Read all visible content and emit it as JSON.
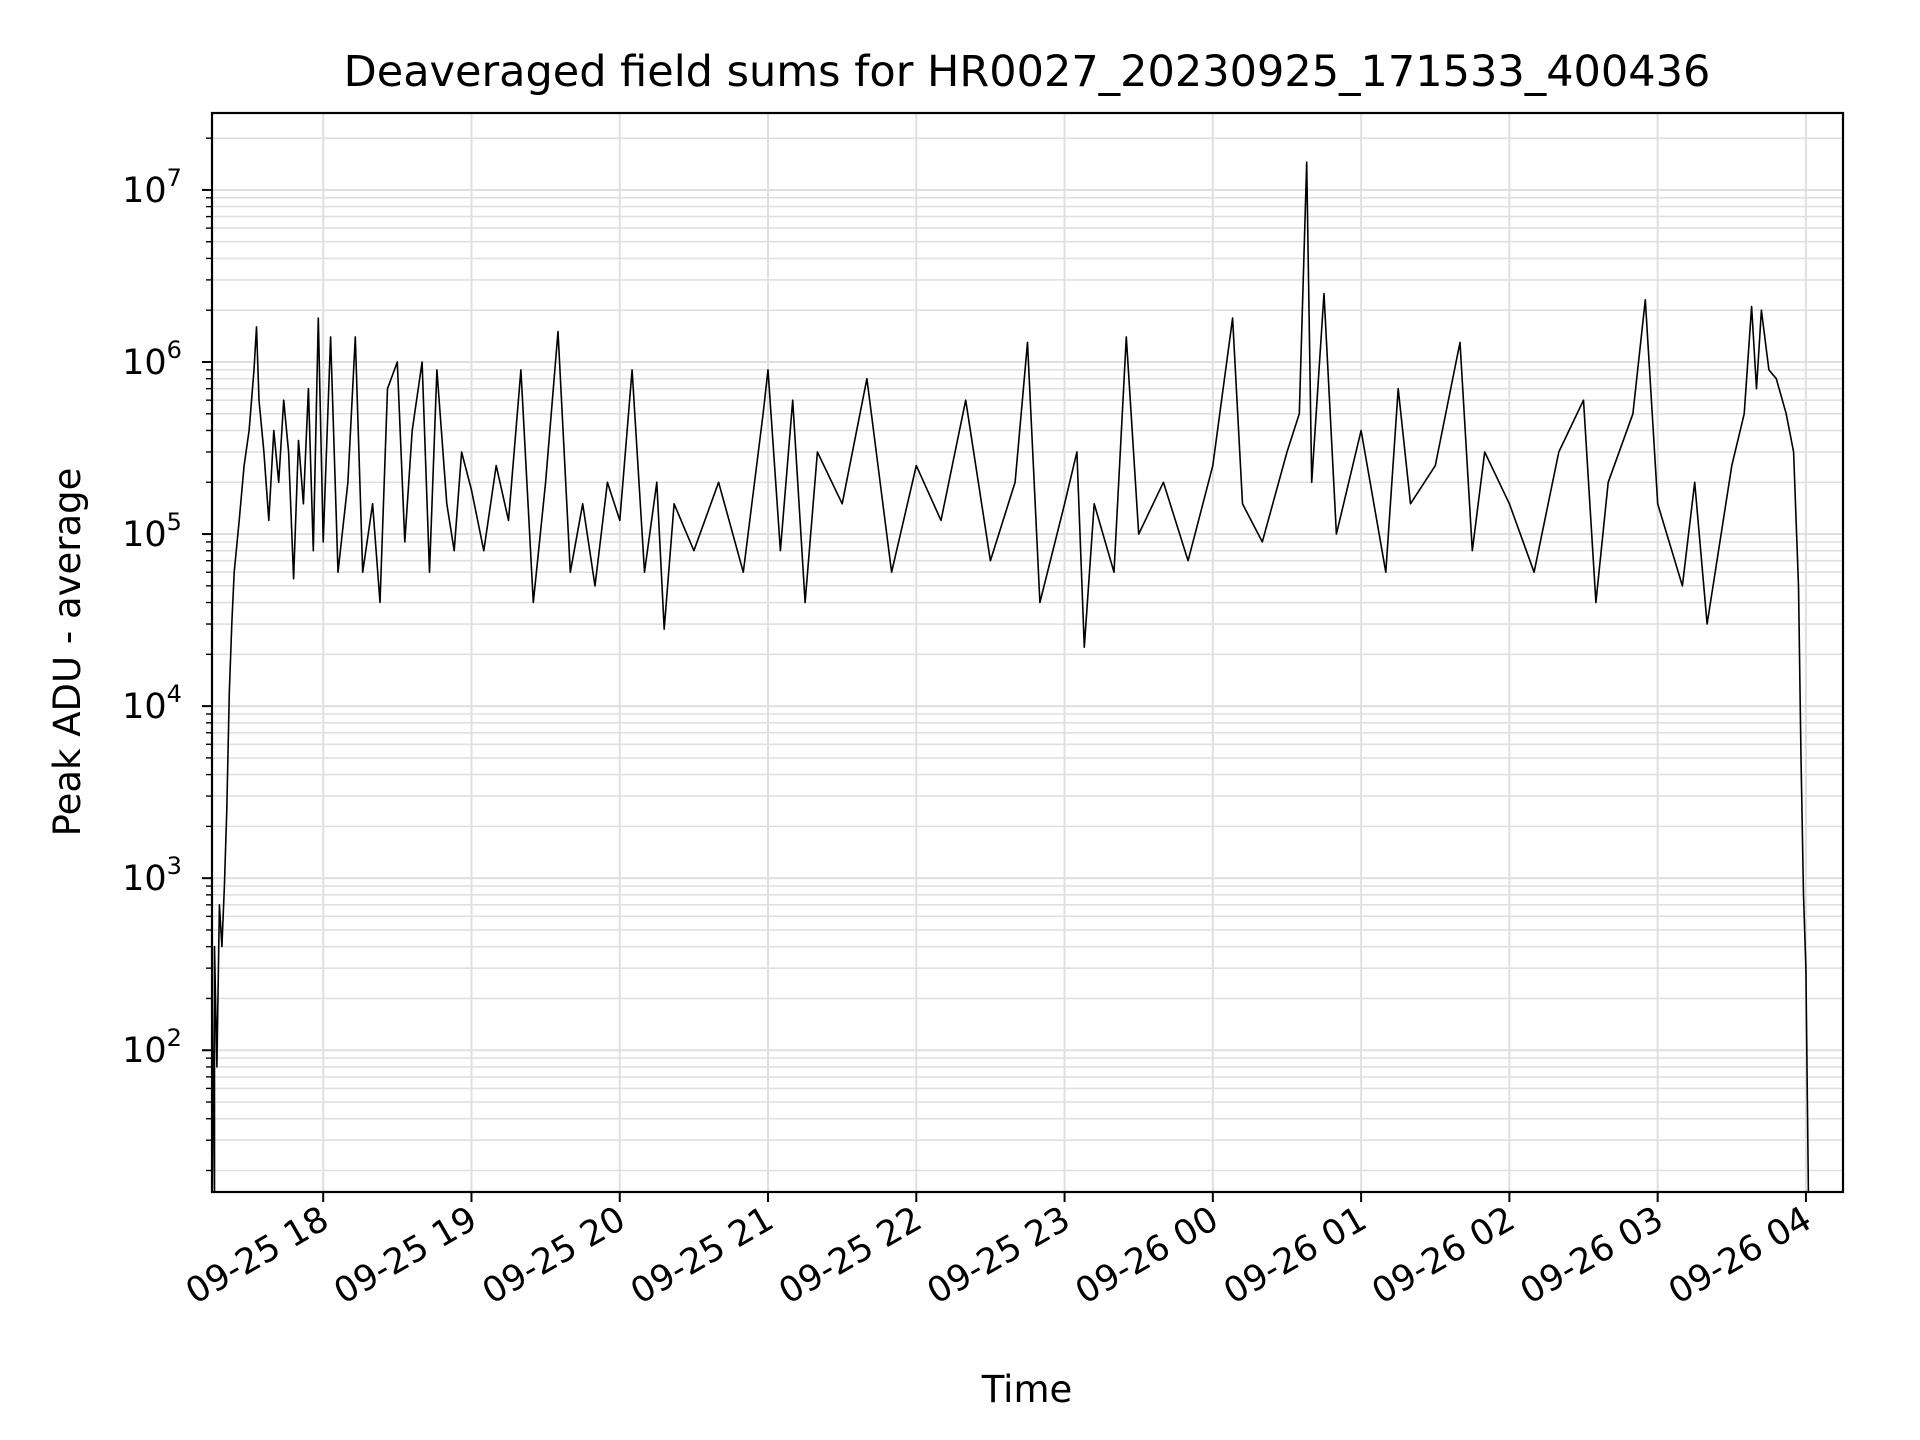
{
  "chart_data": {
    "type": "line",
    "title": "Deaveraged field sums for HR0027_20230925_171533_400436",
    "xlabel": "Time",
    "ylabel": "Peak ADU - average",
    "yscale": "log",
    "ylim": [
      15,
      28000000
    ],
    "xlim": [
      "2023-09-25 17:15",
      "2023-09-26 04:15"
    ],
    "grid": true,
    "line_color": "#000000",
    "grid_color": "#e0e0e0",
    "x_ticks": [
      {
        "t": "2023-09-25 18:00",
        "label": "09-25 18"
      },
      {
        "t": "2023-09-25 19:00",
        "label": "09-25 19"
      },
      {
        "t": "2023-09-25 20:00",
        "label": "09-25 20"
      },
      {
        "t": "2023-09-25 21:00",
        "label": "09-25 21"
      },
      {
        "t": "2023-09-25 22:00",
        "label": "09-25 22"
      },
      {
        "t": "2023-09-25 23:00",
        "label": "09-25 23"
      },
      {
        "t": "2023-09-26 00:00",
        "label": "09-26 00"
      },
      {
        "t": "2023-09-26 01:00",
        "label": "09-26 01"
      },
      {
        "t": "2023-09-26 02:00",
        "label": "09-26 02"
      },
      {
        "t": "2023-09-26 03:00",
        "label": "09-26 03"
      },
      {
        "t": "2023-09-26 04:00",
        "label": "09-26 04"
      }
    ],
    "y_ticks": [
      {
        "value": 100,
        "base": "10",
        "exp": "2"
      },
      {
        "value": 1000,
        "base": "10",
        "exp": "3"
      },
      {
        "value": 10000,
        "base": "10",
        "exp": "4"
      },
      {
        "value": 100000,
        "base": "10",
        "exp": "5"
      },
      {
        "value": 1000000,
        "base": "10",
        "exp": "6"
      },
      {
        "value": 10000000,
        "base": "10",
        "exp": "7"
      }
    ],
    "series": [
      {
        "points": [
          [
            "2023-09-25 17:15",
            20
          ],
          [
            "2023-09-25 17:15",
            250
          ],
          [
            "2023-09-25 17:16",
            15
          ],
          [
            "2023-09-25 17:16",
            400
          ],
          [
            "2023-09-25 17:17",
            80
          ],
          [
            "2023-09-25 17:18",
            700
          ],
          [
            "2023-09-25 17:19",
            400
          ],
          [
            "2023-09-25 17:20",
            900
          ],
          [
            "2023-09-25 17:21",
            2500
          ],
          [
            "2023-09-25 17:22",
            12000
          ],
          [
            "2023-09-25 17:23",
            30000
          ],
          [
            "2023-09-25 17:24",
            60000
          ],
          [
            "2023-09-25 17:26",
            120000
          ],
          [
            "2023-09-25 17:28",
            250000
          ],
          [
            "2023-09-25 17:30",
            400000
          ],
          [
            "2023-09-25 17:32",
            900000
          ],
          [
            "2023-09-25 17:33",
            1600000
          ],
          [
            "2023-09-25 17:34",
            600000
          ],
          [
            "2023-09-25 17:36",
            300000
          ],
          [
            "2023-09-25 17:38",
            120000
          ],
          [
            "2023-09-25 17:40",
            400000
          ],
          [
            "2023-09-25 17:42",
            200000
          ],
          [
            "2023-09-25 17:44",
            600000
          ],
          [
            "2023-09-25 17:46",
            300000
          ],
          [
            "2023-09-25 17:48",
            55000
          ],
          [
            "2023-09-25 17:50",
            350000
          ],
          [
            "2023-09-25 17:52",
            150000
          ],
          [
            "2023-09-25 17:54",
            700000
          ],
          [
            "2023-09-25 17:56",
            80000
          ],
          [
            "2023-09-25 17:58",
            1800000
          ],
          [
            "2023-09-25 18:00",
            90000
          ],
          [
            "2023-09-25 18:03",
            1400000
          ],
          [
            "2023-09-25 18:06",
            60000
          ],
          [
            "2023-09-25 18:10",
            200000
          ],
          [
            "2023-09-25 18:13",
            1400000
          ],
          [
            "2023-09-25 18:16",
            60000
          ],
          [
            "2023-09-25 18:20",
            150000
          ],
          [
            "2023-09-25 18:23",
            40000
          ],
          [
            "2023-09-25 18:26",
            700000
          ],
          [
            "2023-09-25 18:30",
            1000000
          ],
          [
            "2023-09-25 18:33",
            90000
          ],
          [
            "2023-09-25 18:36",
            400000
          ],
          [
            "2023-09-25 18:40",
            1000000
          ],
          [
            "2023-09-25 18:43",
            60000
          ],
          [
            "2023-09-25 18:46",
            900000
          ],
          [
            "2023-09-25 18:50",
            150000
          ],
          [
            "2023-09-25 18:53",
            80000
          ],
          [
            "2023-09-25 18:56",
            300000
          ],
          [
            "2023-09-25 19:00",
            180000
          ],
          [
            "2023-09-25 19:05",
            80000
          ],
          [
            "2023-09-25 19:10",
            250000
          ],
          [
            "2023-09-25 19:15",
            120000
          ],
          [
            "2023-09-25 19:20",
            900000
          ],
          [
            "2023-09-25 19:25",
            40000
          ],
          [
            "2023-09-25 19:30",
            200000
          ],
          [
            "2023-09-25 19:35",
            1500000
          ],
          [
            "2023-09-25 19:40",
            60000
          ],
          [
            "2023-09-25 19:45",
            150000
          ],
          [
            "2023-09-25 19:50",
            50000
          ],
          [
            "2023-09-25 19:55",
            200000
          ],
          [
            "2023-09-25 20:00",
            120000
          ],
          [
            "2023-09-25 20:05",
            900000
          ],
          [
            "2023-09-25 20:10",
            60000
          ],
          [
            "2023-09-25 20:15",
            200000
          ],
          [
            "2023-09-25 20:18",
            28000
          ],
          [
            "2023-09-25 20:22",
            150000
          ],
          [
            "2023-09-25 20:30",
            80000
          ],
          [
            "2023-09-25 20:40",
            200000
          ],
          [
            "2023-09-25 20:50",
            60000
          ],
          [
            "2023-09-25 20:58",
            500000
          ],
          [
            "2023-09-25 21:00",
            900000
          ],
          [
            "2023-09-25 21:05",
            80000
          ],
          [
            "2023-09-25 21:10",
            600000
          ],
          [
            "2023-09-25 21:15",
            40000
          ],
          [
            "2023-09-25 21:20",
            300000
          ],
          [
            "2023-09-25 21:30",
            150000
          ],
          [
            "2023-09-25 21:40",
            800000
          ],
          [
            "2023-09-25 21:50",
            60000
          ],
          [
            "2023-09-25 22:00",
            250000
          ],
          [
            "2023-09-25 22:10",
            120000
          ],
          [
            "2023-09-25 22:20",
            600000
          ],
          [
            "2023-09-25 22:30",
            70000
          ],
          [
            "2023-09-25 22:40",
            200000
          ],
          [
            "2023-09-25 22:45",
            1300000
          ],
          [
            "2023-09-25 22:50",
            40000
          ],
          [
            "2023-09-25 23:00",
            150000
          ],
          [
            "2023-09-25 23:05",
            300000
          ],
          [
            "2023-09-25 23:08",
            22000
          ],
          [
            "2023-09-25 23:12",
            150000
          ],
          [
            "2023-09-25 23:20",
            60000
          ],
          [
            "2023-09-25 23:25",
            1400000
          ],
          [
            "2023-09-25 23:30",
            100000
          ],
          [
            "2023-09-25 23:40",
            200000
          ],
          [
            "2023-09-25 23:50",
            70000
          ],
          [
            "2023-09-26 00:00",
            250000
          ],
          [
            "2023-09-26 00:08",
            1800000
          ],
          [
            "2023-09-26 00:12",
            150000
          ],
          [
            "2023-09-26 00:20",
            90000
          ],
          [
            "2023-09-26 00:30",
            300000
          ],
          [
            "2023-09-26 00:35",
            500000
          ],
          [
            "2023-09-26 00:38",
            14500000
          ],
          [
            "2023-09-26 00:40",
            200000
          ],
          [
            "2023-09-26 00:45",
            2500000
          ],
          [
            "2023-09-26 00:50",
            100000
          ],
          [
            "2023-09-26 01:00",
            400000
          ],
          [
            "2023-09-26 01:10",
            60000
          ],
          [
            "2023-09-26 01:15",
            700000
          ],
          [
            "2023-09-26 01:20",
            150000
          ],
          [
            "2023-09-26 01:30",
            250000
          ],
          [
            "2023-09-26 01:40",
            1300000
          ],
          [
            "2023-09-26 01:45",
            80000
          ],
          [
            "2023-09-26 01:50",
            300000
          ],
          [
            "2023-09-26 02:00",
            150000
          ],
          [
            "2023-09-26 02:10",
            60000
          ],
          [
            "2023-09-26 02:20",
            300000
          ],
          [
            "2023-09-26 02:30",
            600000
          ],
          [
            "2023-09-26 02:35",
            40000
          ],
          [
            "2023-09-26 02:40",
            200000
          ],
          [
            "2023-09-26 02:50",
            500000
          ],
          [
            "2023-09-26 02:55",
            2300000
          ],
          [
            "2023-09-26 03:00",
            150000
          ],
          [
            "2023-09-26 03:10",
            50000
          ],
          [
            "2023-09-26 03:15",
            200000
          ],
          [
            "2023-09-26 03:20",
            30000
          ],
          [
            "2023-09-26 03:30",
            250000
          ],
          [
            "2023-09-26 03:35",
            500000
          ],
          [
            "2023-09-26 03:38",
            2100000
          ],
          [
            "2023-09-26 03:40",
            700000
          ],
          [
            "2023-09-26 03:42",
            2000000
          ],
          [
            "2023-09-26 03:45",
            900000
          ],
          [
            "2023-09-26 03:48",
            800000
          ],
          [
            "2023-09-26 03:52",
            500000
          ],
          [
            "2023-09-26 03:55",
            300000
          ],
          [
            "2023-09-26 03:57",
            50000
          ],
          [
            "2023-09-26 03:58",
            5000
          ],
          [
            "2023-09-26 03:59",
            800
          ],
          [
            "2023-09-26 04:00",
            300
          ],
          [
            "2023-09-26 04:01",
            15
          ]
        ]
      }
    ]
  }
}
